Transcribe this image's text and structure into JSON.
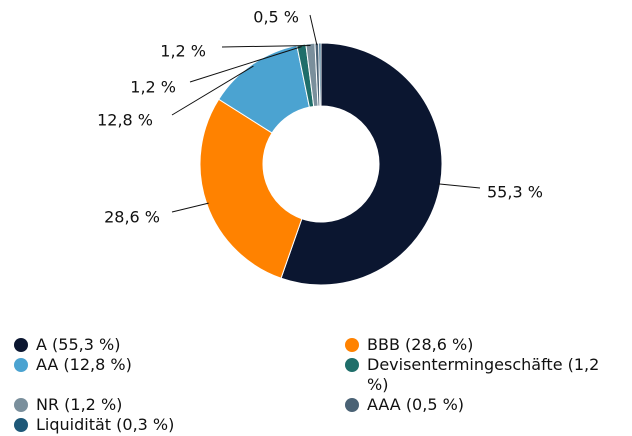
{
  "chart_data": {
    "type": "pie",
    "categories": [
      "A (55,3 %)",
      "BBB (28,6 %)",
      "AA (12,8 %)",
      "Devisentermingeschäfte (1,2 %)",
      "NR (1,2 %)",
      "AAA (0,5 %)",
      "Liquidität (0,3 %)"
    ],
    "values": [
      55.3,
      28.6,
      12.8,
      1.2,
      1.2,
      0.5,
      0.3
    ],
    "value_labels": [
      "55,3 %",
      "28,6 %",
      "12,8 %",
      "1,2 %",
      "1,2 %",
      "0,5 %",
      null
    ],
    "colors": [
      "#0b1630",
      "#ff8200",
      "#4ba3d1",
      "#1f6e6a",
      "#7a8f9c",
      "#4a6275",
      "#1e5878"
    ]
  }
}
